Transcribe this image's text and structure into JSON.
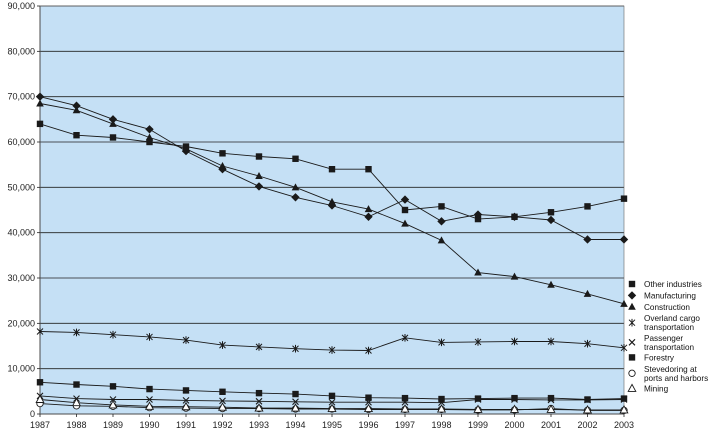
{
  "chart_data": {
    "type": "line",
    "title": "",
    "xlabel": "",
    "ylabel": "",
    "ylim": [
      0,
      90000
    ],
    "y_ticks": [
      "0",
      "10,000",
      "20,000",
      "30,000",
      "40,000",
      "50,000",
      "60,000",
      "70,000",
      "80,000",
      "90,000"
    ],
    "x": [
      "1987",
      "1988",
      "1989",
      "1990",
      "1991",
      "1992",
      "1993",
      "1994",
      "1995",
      "1996",
      "1997",
      "1998",
      "1999",
      "2000",
      "2001",
      "2002",
      "2003"
    ],
    "grid": "horizontal",
    "legend_position": "right",
    "plot_background": "#c5e0f5",
    "series": [
      {
        "name": "Other industries",
        "marker": "square",
        "legend_lines": [
          "Other industries"
        ],
        "values": [
          64000,
          61500,
          61000,
          60000,
          59000,
          57500,
          56800,
          56300,
          54000,
          54000,
          45000,
          45800,
          43000,
          43500,
          44500,
          45800,
          47500
        ]
      },
      {
        "name": "Manufacturing",
        "marker": "diamond",
        "legend_lines": [
          "Manufacturing"
        ],
        "values": [
          70000,
          68000,
          65000,
          62800,
          58000,
          54000,
          50200,
          47800,
          46000,
          43500,
          47300,
          42500,
          44000,
          43500,
          42800,
          38500,
          38500
        ]
      },
      {
        "name": "Construction",
        "marker": "triangle",
        "legend_lines": [
          "Construction"
        ],
        "values": [
          68500,
          67000,
          64000,
          61000,
          58500,
          54700,
          52500,
          50000,
          46800,
          45200,
          42000,
          38300,
          31200,
          30300,
          28500,
          26500,
          24300
        ]
      },
      {
        "name": "Overland cargo transportation",
        "marker": "asterisk",
        "legend_lines": [
          "Overland cargo",
          "transportation"
        ],
        "values": [
          18200,
          18000,
          17500,
          17000,
          16300,
          15200,
          14800,
          14400,
          14100,
          14000,
          16800,
          15800,
          15900,
          16000,
          16000,
          15500,
          14600
        ]
      },
      {
        "name": "Passenger transportation",
        "marker": "x",
        "legend_lines": [
          "Passenger",
          "transportation"
        ],
        "values": [
          4000,
          3400,
          3200,
          3200,
          3000,
          2900,
          2800,
          2700,
          2600,
          2600,
          2600,
          2500,
          3200,
          3200,
          3100,
          3100,
          3200
        ]
      },
      {
        "name": "Forestry",
        "marker": "square",
        "legend_lines": [
          "Forestry"
        ],
        "values": [
          7000,
          6500,
          6100,
          5500,
          5200,
          4900,
          4600,
          4400,
          4000,
          3600,
          3500,
          3300,
          3400,
          3500,
          3500,
          3200,
          3400
        ]
      },
      {
        "name": "Stevedoring at ports and harbors",
        "marker": "circle",
        "legend_lines": [
          "Stevedoring at",
          "ports and harbors"
        ],
        "values": [
          2300,
          1800,
          1700,
          1400,
          1300,
          1200,
          1200,
          1100,
          1100,
          1000,
          1000,
          1000,
          900,
          900,
          1200,
          800,
          800
        ]
      },
      {
        "name": "Mining",
        "marker": "triangle-open",
        "legend_lines": [
          "Mining"
        ],
        "values": [
          3200,
          2500,
          2000,
          1700,
          1600,
          1500,
          1300,
          1300,
          1200,
          1200,
          1100,
          1100,
          1000,
          1000,
          1000,
          900,
          900
        ]
      }
    ]
  }
}
